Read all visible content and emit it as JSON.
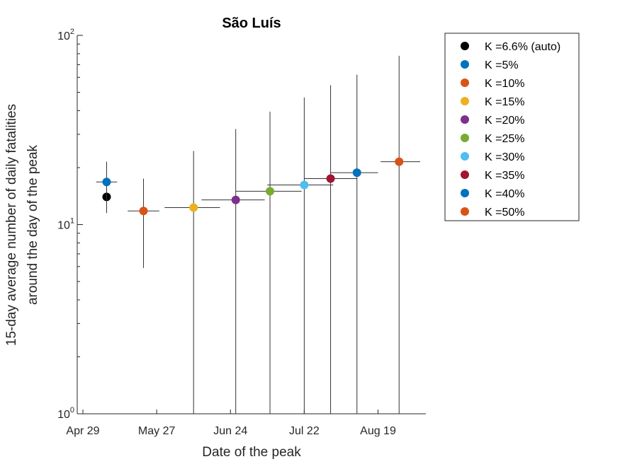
{
  "chart_data": {
    "type": "scatter",
    "title": "São Luís",
    "xlabel": "Date of the peak",
    "ylabel_line1": "15-day average number of daily fatalities",
    "ylabel_line2": "around the day of the peak",
    "yscale": "log",
    "ylim": [
      1,
      100
    ],
    "y_ticks": [
      {
        "base": "10",
        "exp": "0",
        "value": 1
      },
      {
        "base": "10",
        "exp": "1",
        "value": 10
      },
      {
        "base": "10",
        "exp": "2",
        "value": 100
      }
    ],
    "xlim": [
      "2020-04-29",
      "2020-09-04"
    ],
    "x_ticks": [
      {
        "label": "Apr 29",
        "date": "2020-04-29"
      },
      {
        "label": "May 27",
        "date": "2020-05-27"
      },
      {
        "label": "Jun 24",
        "date": "2020-06-24"
      },
      {
        "label": "Jul 22",
        "date": "2020-07-22"
      },
      {
        "label": "Aug 19",
        "date": "2020-08-19"
      }
    ],
    "legend_position": "outside-right",
    "series": [
      {
        "name": "K =6.6% (auto)",
        "color": "#000000",
        "date": "2020-05-08",
        "y": 14.0,
        "x_err": [
          "2020-05-07",
          "2020-05-09"
        ],
        "y_err": [
          11.5,
          17.5
        ]
      },
      {
        "name": "K =5%",
        "color": "#0072BD",
        "date": "2020-05-08",
        "y": 16.8,
        "x_err": [
          "2020-05-04",
          "2020-05-12"
        ],
        "y_err": [
          12.0,
          21.5
        ]
      },
      {
        "name": "K =10%",
        "color": "#D95319",
        "date": "2020-05-22",
        "y": 11.8,
        "x_err": [
          "2020-05-16",
          "2020-05-28"
        ],
        "y_err": [
          5.9,
          17.5
        ]
      },
      {
        "name": "K =15%",
        "color": "#EDB120",
        "date": "2020-06-10",
        "y": 12.3,
        "x_err": [
          "2020-05-30",
          "2020-06-20"
        ],
        "y_err": [
          1,
          24.5
        ]
      },
      {
        "name": "K =20%",
        "color": "#7E2F8E",
        "date": "2020-06-26",
        "y": 13.5,
        "x_err": [
          "2020-06-13",
          "2020-07-07"
        ],
        "y_err": [
          1,
          32.0
        ]
      },
      {
        "name": "K =25%",
        "color": "#77AC30",
        "date": "2020-07-09",
        "y": 15.0,
        "x_err": [
          "2020-06-26",
          "2020-07-21"
        ],
        "y_err": [
          1,
          39.5
        ]
      },
      {
        "name": "K =30%",
        "color": "#4DBEEE",
        "date": "2020-07-22",
        "y": 16.2,
        "x_err": [
          "2020-07-08",
          "2020-08-02"
        ],
        "y_err": [
          1,
          47.0
        ]
      },
      {
        "name": "K =35%",
        "color": "#A2142F",
        "date": "2020-08-01",
        "y": 17.5,
        "x_err": [
          "2020-07-22",
          "2020-08-11"
        ],
        "y_err": [
          1,
          54.5
        ]
      },
      {
        "name": "K =40%",
        "color": "#0072BD",
        "date": "2020-08-11",
        "y": 18.8,
        "x_err": [
          "2020-08-01",
          "2020-08-19"
        ],
        "y_err": [
          1,
          62.0
        ]
      },
      {
        "name": "K =50%",
        "color": "#D95319",
        "date": "2020-08-27",
        "y": 21.5,
        "x_err": [
          "2020-08-20",
          "2020-09-04"
        ],
        "y_err": [
          1,
          78.0
        ]
      }
    ]
  }
}
